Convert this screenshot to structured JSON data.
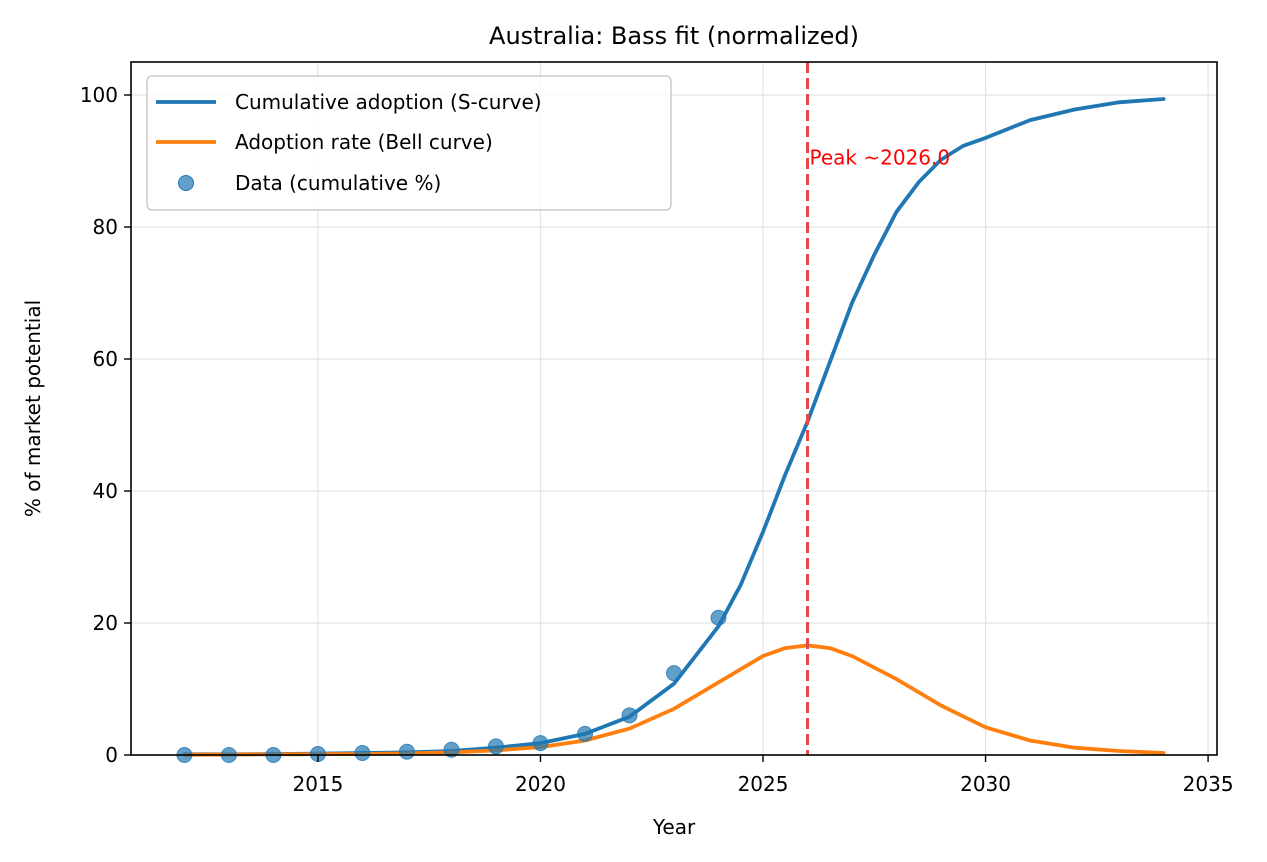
{
  "chart_data": {
    "type": "line",
    "title": "Australia: Bass fit (normalized)",
    "xlabel": "Year",
    "ylabel": "% of market potential",
    "xlim": [
      2010.8,
      2035.2
    ],
    "ylim": [
      0,
      105
    ],
    "xticks": [
      2015,
      2020,
      2025,
      2030,
      2035
    ],
    "yticks": [
      0,
      20,
      40,
      60,
      80,
      100
    ],
    "grid": true,
    "legend_position": "upper-left",
    "colors": {
      "cumulative": "#1f77b4",
      "rate": "#ff7f0e",
      "data": "#1f77b4",
      "peak_line": "#e8474c",
      "annotation": "#ff0000"
    },
    "series": [
      {
        "name": "Cumulative adoption (S-curve)",
        "kind": "line",
        "x": [
          2012,
          2013,
          2014,
          2015,
          2016,
          2017,
          2018,
          2019,
          2020,
          2021,
          2022,
          2023,
          2024,
          2024.5,
          2025,
          2025.5,
          2026,
          2026.5,
          2027,
          2027.5,
          2028,
          2028.5,
          2029,
          2029.5,
          2030,
          2031,
          2032,
          2033,
          2034
        ],
        "y": [
          0.1,
          0.1,
          0.15,
          0.2,
          0.3,
          0.4,
          0.6,
          1.1,
          1.8,
          3.2,
          5.8,
          10.8,
          19.5,
          25.8,
          33.8,
          42.5,
          50.5,
          59.5,
          68.5,
          75.8,
          82.3,
          86.8,
          90.2,
          92.3,
          93.5,
          96.2,
          97.8,
          98.9,
          99.4
        ]
      },
      {
        "name": "Adoption rate (Bell curve)",
        "kind": "line",
        "x": [
          2012,
          2014,
          2016,
          2017,
          2018,
          2019,
          2020,
          2021,
          2022,
          2023,
          2024,
          2025,
          2025.5,
          2026,
          2026.5,
          2027,
          2028,
          2029,
          2030,
          2031,
          2032,
          2033,
          2034
        ],
        "y": [
          0.05,
          0.1,
          0.15,
          0.25,
          0.4,
          0.7,
          1.2,
          2.2,
          4.0,
          7.0,
          11.0,
          15.0,
          16.2,
          16.6,
          16.2,
          15.0,
          11.5,
          7.5,
          4.2,
          2.2,
          1.1,
          0.6,
          0.3
        ]
      },
      {
        "name": "Data (cumulative %)",
        "kind": "scatter",
        "x": [
          2012,
          2013,
          2014,
          2015,
          2016,
          2017,
          2018,
          2019,
          2020,
          2021,
          2022,
          2023,
          2024
        ],
        "y": [
          0.0,
          0.0,
          0.0,
          0.15,
          0.3,
          0.5,
          0.8,
          1.3,
          1.8,
          3.2,
          6.0,
          12.4,
          20.8
        ]
      }
    ],
    "peak": {
      "x": 2026.0,
      "label": "Peak ~2026.0"
    }
  }
}
